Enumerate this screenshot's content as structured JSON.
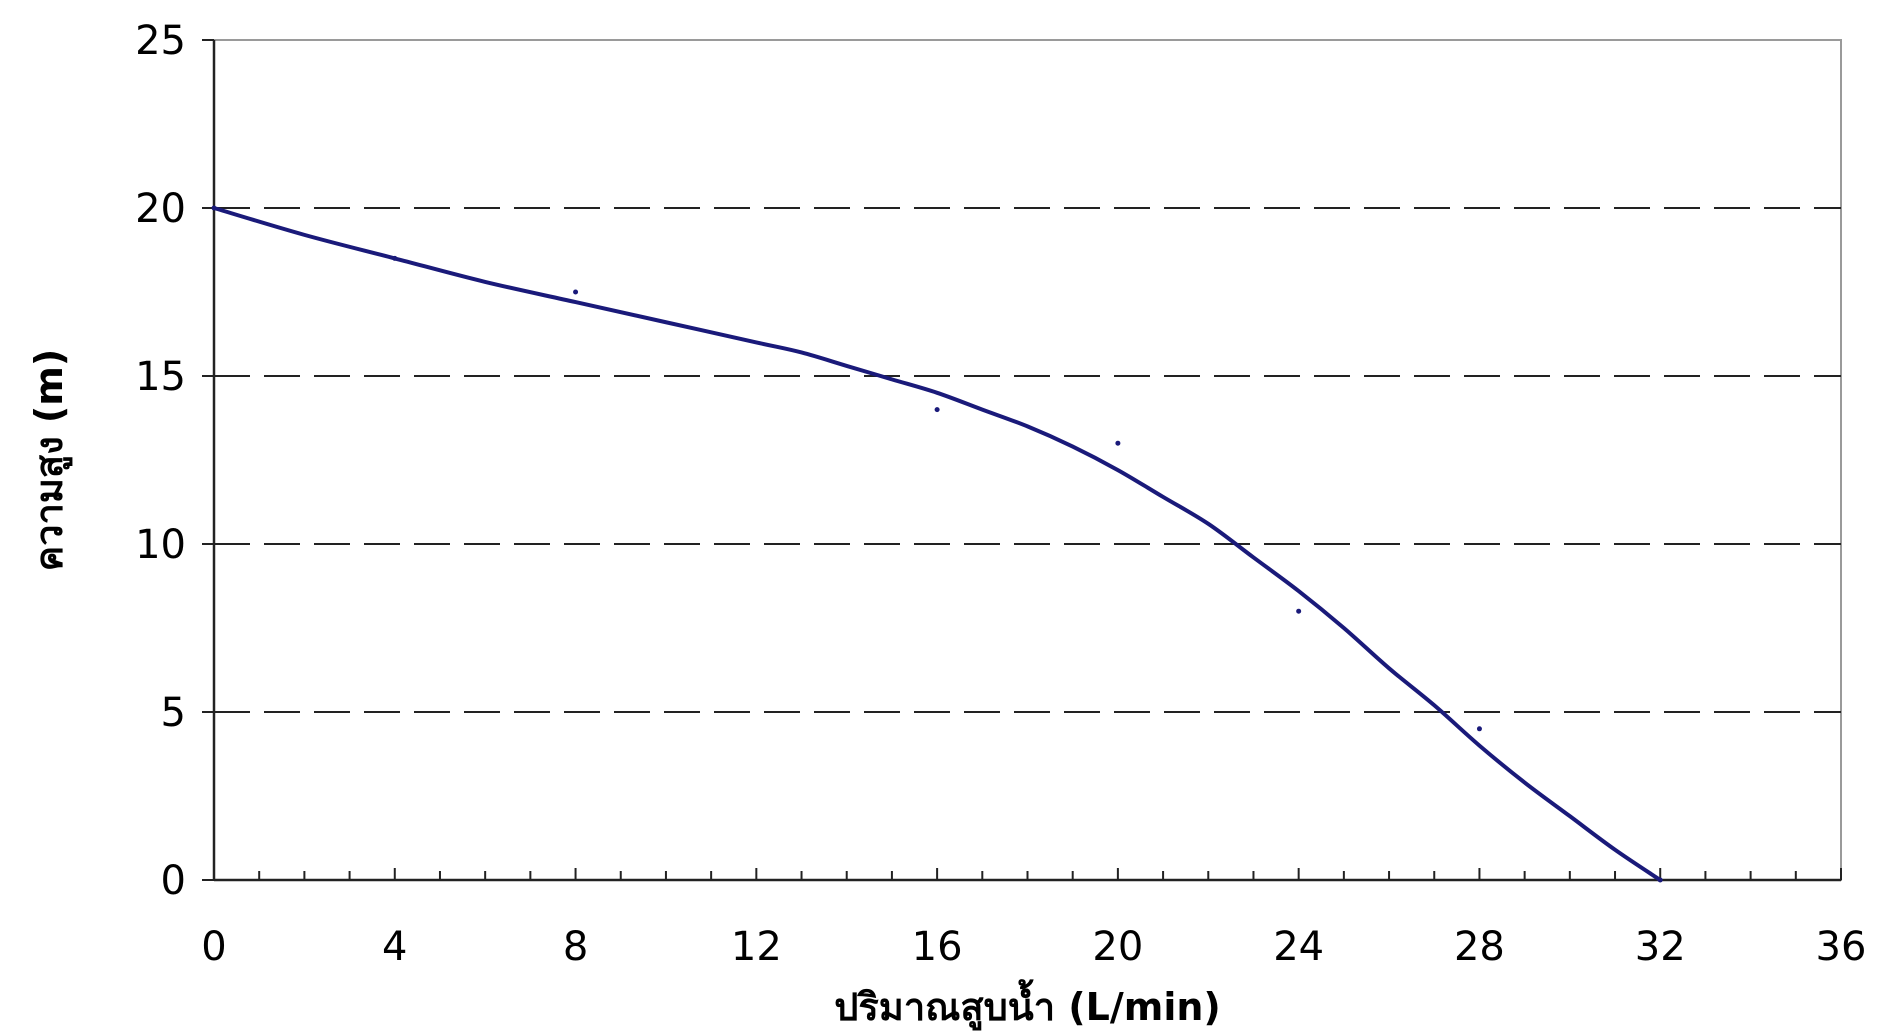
{
  "chart_data": {
    "type": "line",
    "title": "",
    "xlabel": "ปริมาณสูบน้ำ (L/min)",
    "ylabel": "ความสูง (m)",
    "xlim": [
      0,
      36
    ],
    "ylim": [
      0,
      25
    ],
    "x_ticks": [
      0,
      4,
      8,
      12,
      16,
      20,
      24,
      28,
      32,
      36
    ],
    "y_ticks": [
      0,
      5,
      10,
      15,
      20,
      25
    ],
    "x_minor_step": 1,
    "grid": "horizontal dashed",
    "legend": "none",
    "line_color": "#1a1a7a",
    "point_color": "#1a1a7a",
    "series": [
      {
        "style": "smooth-line",
        "x": [
          0,
          2,
          4,
          6,
          8,
          10,
          12,
          13,
          14,
          15,
          16,
          17,
          18,
          19,
          20,
          21,
          22,
          23,
          24,
          25,
          26,
          27,
          28,
          29,
          30,
          31,
          32
        ],
        "y": [
          20,
          19.2,
          18.5,
          17.8,
          17.2,
          16.6,
          16.0,
          15.7,
          15.3,
          14.9,
          14.5,
          14.0,
          13.5,
          12.9,
          12.2,
          11.4,
          10.6,
          9.6,
          8.6,
          7.5,
          6.3,
          5.2,
          4.0,
          2.9,
          1.9,
          0.9,
          0
        ]
      },
      {
        "style": "points",
        "x": [
          0,
          4,
          8,
          16,
          20,
          24,
          28,
          32
        ],
        "y": [
          20,
          18.5,
          17.5,
          14,
          13,
          8,
          4.5,
          0
        ]
      }
    ]
  }
}
